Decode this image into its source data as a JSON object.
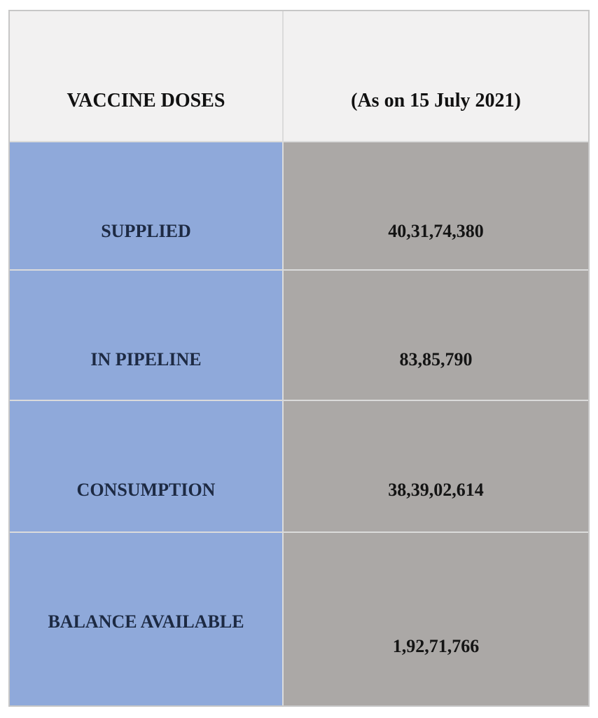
{
  "table": {
    "header": {
      "col1": "VACCINE DOSES",
      "col2": "(As on 15 July 2021)"
    },
    "rows": [
      {
        "label": "SUPPLIED",
        "value": "40,31,74,380"
      },
      {
        "label": "IN PIPELINE",
        "value": "83,85,790"
      },
      {
        "label": "CONSUMPTION",
        "value": "38,39,02,614"
      },
      {
        "label": "BALANCE AVAILABLE",
        "value": "1,92,71,766"
      }
    ],
    "colors": {
      "label_cell_bg": "#8fa9da",
      "value_cell_bg": "#aba8a6",
      "header_cell_bg": "#f2f1f1",
      "divider": "#dbdbdb",
      "outer_border": "#c7c7c7",
      "label_text": "#1d2a43",
      "value_text": "#141414",
      "page_bg": "#ffffff"
    }
  }
}
